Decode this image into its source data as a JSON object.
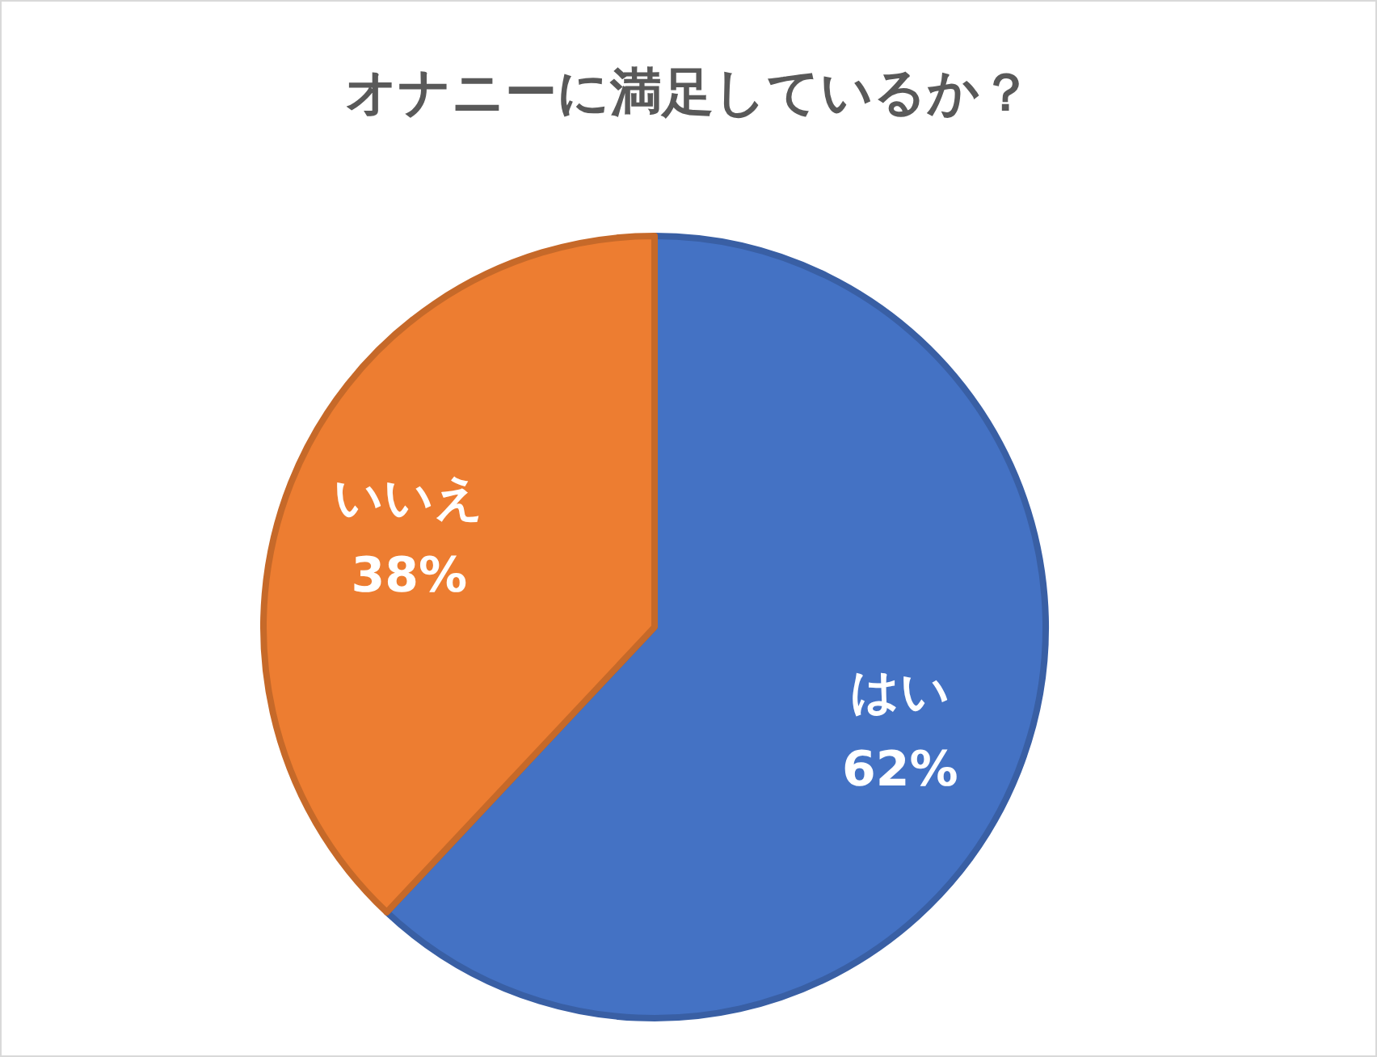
{
  "chart_data": {
    "type": "pie",
    "title": "オナニーに満足しているか？",
    "categories": [
      "はい",
      "いいえ"
    ],
    "values": [
      62,
      38
    ],
    "colors": [
      "#4472c4",
      "#ed7d31"
    ],
    "value_labels": [
      "62%",
      "38%"
    ],
    "legend": false
  }
}
